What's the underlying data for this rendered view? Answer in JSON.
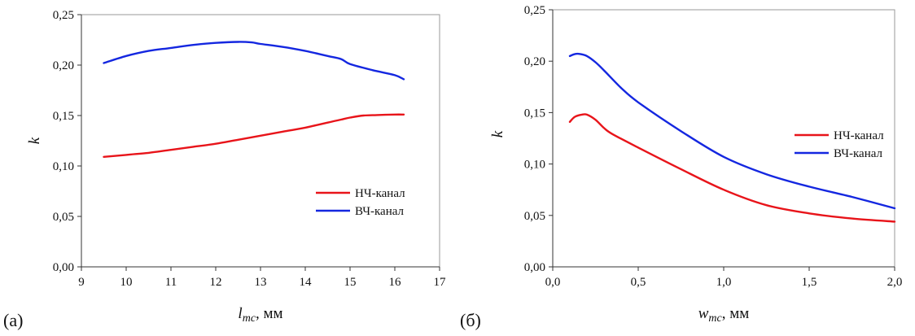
{
  "chart_data": [
    {
      "type": "line",
      "panel_label": "(а)",
      "xlabel_main": "l",
      "xlabel_sub": "mc",
      "xlabel_suffix": ", мм",
      "ylabel": "k",
      "xlim": [
        9,
        17
      ],
      "ylim": [
        0,
        0.25
      ],
      "x_ticks": [
        9,
        10,
        11,
        12,
        13,
        14,
        15,
        16,
        17
      ],
      "x_tick_labels": [
        "9",
        "10",
        "11",
        "12",
        "13",
        "14",
        "15",
        "16",
        "17"
      ],
      "y_ticks": [
        0,
        0.05,
        0.1,
        0.15,
        0.2,
        0.25
      ],
      "y_tick_labels": [
        "0,00",
        "0,05",
        "0,10",
        "0,15",
        "0,20",
        "0,25"
      ],
      "legend_position": "center-right",
      "series": [
        {
          "name": "НЧ-канал",
          "color": "#e8141a",
          "x": [
            9.5,
            10,
            10.5,
            11,
            11.5,
            12,
            12.5,
            13,
            13.5,
            14,
            14.5,
            14.8,
            15,
            15.3,
            15.6,
            16,
            16.2
          ],
          "y": [
            0.109,
            0.111,
            0.113,
            0.116,
            0.119,
            0.122,
            0.126,
            0.13,
            0.134,
            0.138,
            0.143,
            0.146,
            0.148,
            0.15,
            0.1505,
            0.151,
            0.151
          ]
        },
        {
          "name": "ВЧ-канал",
          "color": "#1427e0",
          "x": [
            9.5,
            10,
            10.5,
            11,
            11.5,
            12,
            12.5,
            12.8,
            13,
            13.5,
            14,
            14.5,
            14.8,
            15,
            15.5,
            16,
            16.2
          ],
          "y": [
            0.202,
            0.209,
            0.214,
            0.217,
            0.22,
            0.222,
            0.223,
            0.2225,
            0.221,
            0.218,
            0.214,
            0.209,
            0.206,
            0.201,
            0.195,
            0.19,
            0.186
          ]
        }
      ]
    },
    {
      "type": "line",
      "panel_label": "(б)",
      "xlabel_main": "w",
      "xlabel_sub": "mc",
      "xlabel_suffix": ", мм",
      "ylabel": "k",
      "xlim": [
        0,
        2.0
      ],
      "ylim": [
        0,
        0.25
      ],
      "x_ticks": [
        0,
        0.5,
        1.0,
        1.5,
        2.0
      ],
      "x_tick_labels": [
        "0,0",
        "0,5",
        "1,0",
        "1,5",
        "2,0"
      ],
      "y_ticks": [
        0,
        0.05,
        0.1,
        0.15,
        0.2,
        0.25
      ],
      "y_tick_labels": [
        "0,00",
        "0,05",
        "0,10",
        "0,15",
        "0,20",
        "0,25"
      ],
      "legend_position": "right",
      "series": [
        {
          "name": "НЧ-канал",
          "color": "#e8141a",
          "x": [
            0.1,
            0.13,
            0.17,
            0.2,
            0.25,
            0.3,
            0.35,
            0.5,
            0.75,
            1.0,
            1.25,
            1.5,
            1.75,
            2.0
          ],
          "y": [
            0.141,
            0.146,
            0.148,
            0.148,
            0.143,
            0.135,
            0.129,
            0.116,
            0.095,
            0.075,
            0.06,
            0.052,
            0.047,
            0.044
          ]
        },
        {
          "name": "ВЧ-канал",
          "color": "#1427e0",
          "x": [
            0.1,
            0.13,
            0.16,
            0.2,
            0.25,
            0.3,
            0.4,
            0.5,
            0.75,
            1.0,
            1.25,
            1.5,
            1.75,
            2.0
          ],
          "y": [
            0.205,
            0.207,
            0.207,
            0.205,
            0.199,
            0.191,
            0.174,
            0.16,
            0.132,
            0.107,
            0.09,
            0.078,
            0.068,
            0.057
          ]
        }
      ]
    }
  ]
}
